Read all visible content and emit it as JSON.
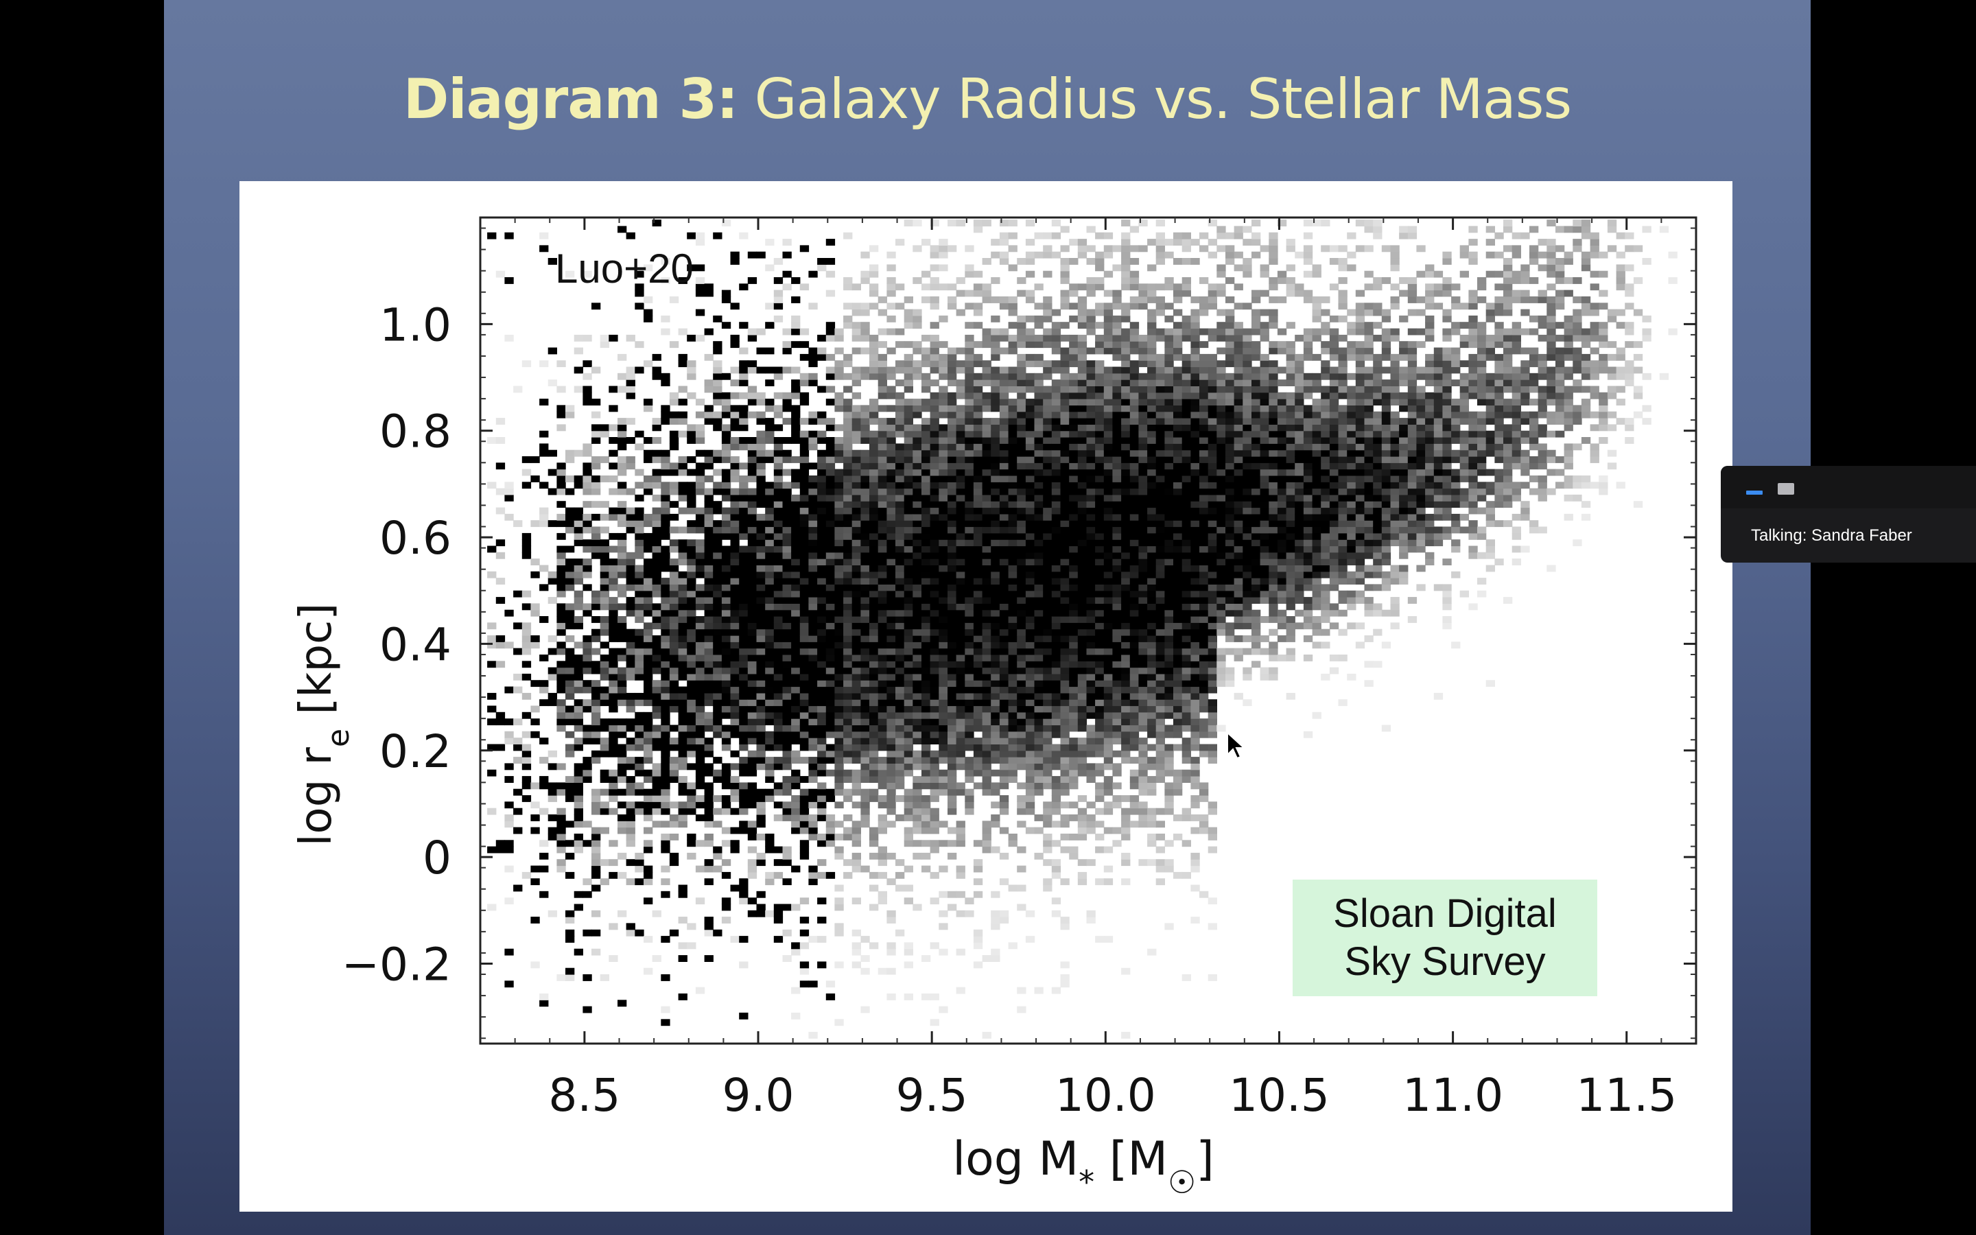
{
  "slide": {
    "title_bold": "Diagram 3:",
    "title_rest": "Galaxy Radius vs. Stellar Mass"
  },
  "figure": {
    "survey_label_line1": "Sloan Digital",
    "survey_label_line2": "Sky Survey"
  },
  "chart_data": {
    "type": "heatmap",
    "description_source": "2D density histogram of galaxy size vs. stellar mass",
    "annotation": "Luo+20",
    "xlabel": "log M* [M☉]",
    "ylabel": "log re [kpc]",
    "xlim": [
      8.2,
      11.7
    ],
    "ylim": [
      -0.35,
      1.2
    ],
    "xticks": [
      8.5,
      9.0,
      9.5,
      10.0,
      10.5,
      11.0,
      11.5
    ],
    "xtick_labels": [
      "8.5",
      "9.0",
      "9.5",
      "10.0",
      "10.5",
      "11.0",
      "11.5"
    ],
    "yticks": [
      -0.2,
      0,
      0.2,
      0.4,
      0.6,
      0.8,
      1.0
    ],
    "ytick_labels": [
      "−0.2",
      "0",
      "0.2",
      "0.4",
      "0.6",
      "0.8",
      "1.0"
    ],
    "density_ridge": [
      {
        "x": 8.5,
        "y": 0.35
      },
      {
        "x": 9.0,
        "y": 0.42
      },
      {
        "x": 9.5,
        "y": 0.48
      },
      {
        "x": 10.0,
        "y": 0.55
      },
      {
        "x": 10.5,
        "y": 0.58
      },
      {
        "x": 11.0,
        "y": 0.72
      },
      {
        "x": 11.3,
        "y": 0.85
      }
    ],
    "colormap": "grayscale (white low density, black high density)",
    "grid": false
  },
  "meeting": {
    "speaker_text": "Talking: Sandra Faber"
  },
  "colors": {
    "slide_title": "#f3f0b1",
    "survey_label_bg": "#d6f5db",
    "minimize_accent": "#3b8cf0"
  }
}
